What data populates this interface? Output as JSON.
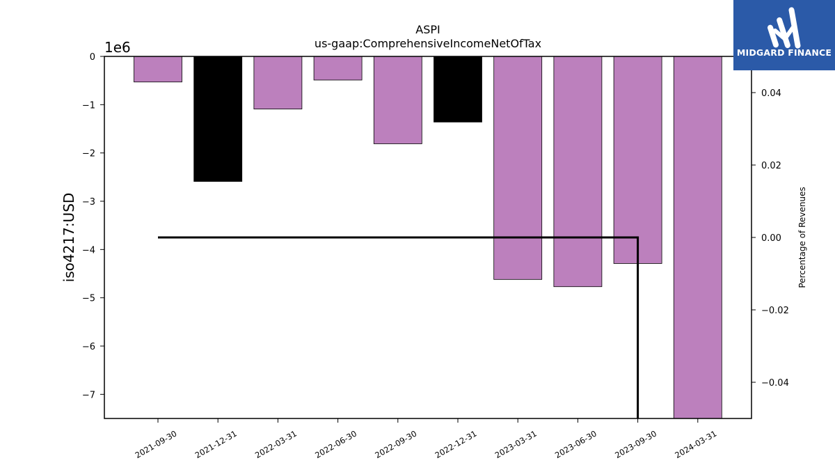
{
  "chart_data": {
    "type": "bar",
    "title": "ASPI",
    "subtitle": "us-gaap:ComprehensiveIncomeNetOfTax",
    "ylabel": "iso4217:USD",
    "y_offset_label": "1e6",
    "y2label": "Percentage of Revenues",
    "categories": [
      "2021-09-30",
      "2021-12-31",
      "2022-03-31",
      "2022-06-30",
      "2022-09-30",
      "2022-12-31",
      "2023-03-31",
      "2023-06-30",
      "2023-09-30",
      "2024-03-31"
    ],
    "values": [
      -530000,
      -2590000,
      -1090000,
      -490000,
      -1810000,
      -1360000,
      -4620000,
      -4770000,
      -4290000,
      -7500000
    ],
    "bar_colors": [
      "#bc80bd",
      "#000000",
      "#bc80bd",
      "#bc80bd",
      "#bc80bd",
      "#000000",
      "#bc80bd",
      "#bc80bd",
      "#bc80bd",
      "#bc80bd"
    ],
    "ylim": [
      -7500000,
      0
    ],
    "yticks": [
      0,
      -1000000,
      -2000000,
      -3000000,
      -4000000,
      -5000000,
      -6000000,
      -7000000
    ],
    "ytick_labels": [
      "0",
      "−1",
      "−2",
      "−3",
      "−4",
      "−5",
      "−6",
      "−7"
    ],
    "y2lim": [
      -0.05,
      0.05
    ],
    "y2ticks": [
      0.04,
      0.02,
      0.0,
      -0.02,
      -0.04
    ],
    "y2tick_labels": [
      "0.04",
      "0.02",
      "0.00",
      "−0.02",
      "−0.04"
    ],
    "line_series": {
      "x_categories": [
        "2021-09-30",
        "2023-09-30",
        "2023-09-30"
      ],
      "values": [
        0.0,
        0.0,
        -0.05
      ],
      "color": "#000000"
    },
    "grid": false
  },
  "logo": {
    "text": "MIDGARD FINANCE",
    "color": "#2b5aa8"
  }
}
